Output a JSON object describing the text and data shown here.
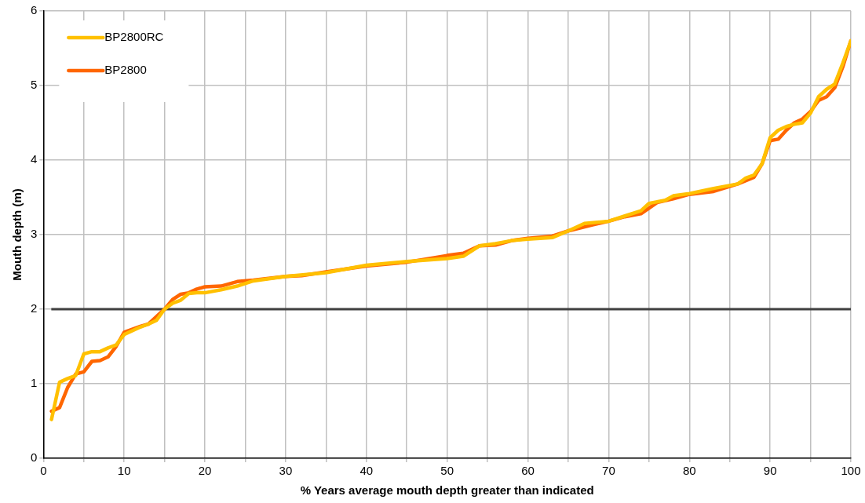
{
  "chart_data": {
    "type": "line",
    "xlabel": "% Years average mouth depth greater than indicated",
    "ylabel": "Mouth depth (m)",
    "xlim": [
      0,
      100
    ],
    "ylim": [
      0,
      6
    ],
    "xticks": [
      0,
      {
        "value": 5,
        "label": null
      },
      10,
      {
        "value": 15,
        "label": null
      },
      20,
      {
        "value": 25,
        "label": null
      },
      30,
      {
        "value": 35,
        "label": null
      },
      40,
      {
        "value": 45,
        "label": null
      },
      50,
      {
        "value": 55,
        "label": null
      },
      60,
      {
        "value": 65,
        "label": null
      },
      70,
      {
        "value": 75,
        "label": null
      },
      80,
      {
        "value": 85,
        "label": null
      },
      90,
      {
        "value": 95,
        "label": null
      },
      100
    ],
    "yticks": [
      0,
      1,
      2,
      3,
      4,
      5,
      6
    ],
    "grid": true,
    "legend": "top left",
    "marker": "none",
    "line_style": "solid",
    "ref_lines": [
      {
        "axis": "y",
        "value": 2,
        "color": "#404040"
      }
    ],
    "series": [
      {
        "name": "BP2800RC",
        "color": "#ffc000",
        "x": [
          1,
          2,
          3,
          4,
          5,
          6,
          7,
          8,
          9,
          10,
          12,
          13,
          14,
          15,
          16,
          17,
          18,
          19,
          20,
          22,
          24,
          26,
          30,
          35,
          40,
          45,
          50,
          52,
          54,
          56,
          58,
          60,
          63,
          65,
          67,
          70,
          72,
          74,
          75,
          77,
          78,
          80,
          83,
          86,
          87,
          88,
          89,
          90,
          91,
          92,
          93,
          94,
          95,
          96,
          97,
          98,
          99,
          100
        ],
        "values": [
          0.52,
          1.02,
          1.07,
          1.11,
          1.4,
          1.43,
          1.43,
          1.48,
          1.52,
          1.66,
          1.76,
          1.8,
          1.85,
          2.0,
          2.08,
          2.12,
          2.21,
          2.22,
          2.22,
          2.26,
          2.31,
          2.38,
          2.44,
          2.49,
          2.59,
          2.64,
          2.68,
          2.71,
          2.85,
          2.88,
          2.92,
          2.94,
          2.96,
          3.05,
          3.15,
          3.18,
          3.25,
          3.32,
          3.42,
          3.46,
          3.52,
          3.55,
          3.62,
          3.68,
          3.76,
          3.8,
          3.95,
          4.3,
          4.4,
          4.45,
          4.48,
          4.5,
          4.63,
          4.85,
          4.95,
          5.02,
          5.3,
          5.6
        ]
      },
      {
        "name": "BP2800",
        "color": "#ff6600",
        "x": [
          1,
          2,
          3,
          4,
          5,
          6,
          7,
          8,
          9,
          10,
          12,
          13,
          14,
          15,
          16,
          17,
          18,
          19,
          20,
          22,
          24,
          26,
          30,
          32,
          35,
          40,
          45,
          50,
          52,
          54,
          56,
          58,
          60,
          63,
          65,
          68,
          70,
          72,
          74,
          76,
          78,
          80,
          83,
          86,
          88,
          89,
          90,
          91,
          92,
          93,
          94,
          95,
          96,
          97,
          98,
          99,
          100
        ],
        "values": [
          0.63,
          0.68,
          0.95,
          1.13,
          1.16,
          1.3,
          1.31,
          1.36,
          1.5,
          1.69,
          1.77,
          1.8,
          1.9,
          2.0,
          2.13,
          2.2,
          2.22,
          2.27,
          2.3,
          2.31,
          2.37,
          2.39,
          2.44,
          2.45,
          2.5,
          2.58,
          2.63,
          2.72,
          2.75,
          2.85,
          2.86,
          2.92,
          2.95,
          2.98,
          3.05,
          3.13,
          3.18,
          3.24,
          3.28,
          3.43,
          3.48,
          3.54,
          3.58,
          3.68,
          3.77,
          3.95,
          4.26,
          4.28,
          4.4,
          4.5,
          4.55,
          4.65,
          4.8,
          4.85,
          4.97,
          5.25,
          5.6
        ]
      }
    ]
  }
}
